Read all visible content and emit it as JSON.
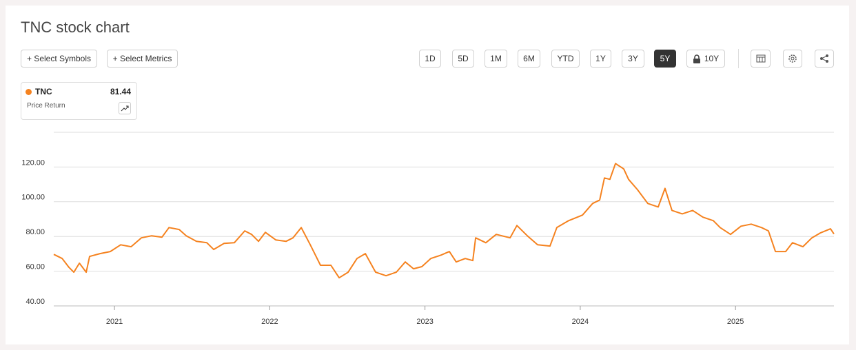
{
  "header": {
    "title": "TNC stock chart"
  },
  "toolbar": {
    "buttons": [
      "+ Select Symbols",
      "+ Select Metrics"
    ],
    "ranges": [
      "1D",
      "5D",
      "1M",
      "6M",
      "YTD",
      "1Y",
      "3Y",
      "5Y",
      "10Y"
    ],
    "active_range": "5Y"
  },
  "legend": {
    "value": "81.44",
    "metric": "Price Return"
  },
  "chart_data": {
    "type": "line",
    "x": [
      2020.609,
      2020.663,
      2020.707,
      2020.738,
      2020.774,
      2020.818,
      2020.84,
      2020.907,
      2020.973,
      2021.04,
      2021.107,
      2021.173,
      2021.24,
      2021.306,
      2021.351,
      2021.417,
      2021.462,
      2021.528,
      2021.595,
      2021.639,
      2021.706,
      2021.772,
      2021.839,
      2021.883,
      2021.928,
      2021.972,
      2022.039,
      2022.105,
      2022.15,
      2022.203,
      2022.261,
      2022.327,
      2022.394,
      2022.447,
      2022.505,
      2022.562,
      2022.616,
      2022.682,
      2022.749,
      2022.815,
      2022.873,
      2022.926,
      2022.98,
      2023.037,
      2023.104,
      2023.157,
      2023.201,
      2023.259,
      2023.308,
      2023.326,
      2023.392,
      2023.459,
      2023.548,
      2023.592,
      2023.659,
      2023.725,
      2023.805,
      2023.849,
      2023.925,
      2024.014,
      2024.08,
      2024.125,
      2024.156,
      2024.191,
      2024.227,
      2024.28,
      2024.311,
      2024.369,
      2024.435,
      2024.502,
      2024.546,
      2024.591,
      2024.657,
      2024.724,
      2024.79,
      2024.857,
      2024.901,
      2024.968,
      2025.035,
      2025.101,
      2025.168,
      2025.212,
      2025.257,
      2025.323,
      2025.367,
      2025.434,
      2025.492,
      2025.545,
      2025.612,
      2025.634
    ],
    "series": [
      {
        "name": "TNC",
        "color": "#f5821f",
        "values": [
          69.7,
          67.3,
          62.2,
          59.4,
          64.6,
          59.4,
          68.5,
          70.1,
          71.3,
          75.2,
          74.1,
          79.2,
          80.4,
          79.6,
          85.1,
          84,
          80.4,
          77.2,
          76.4,
          72.5,
          76,
          76.4,
          83.2,
          81.2,
          77.2,
          82.4,
          78,
          77.2,
          79.2,
          85.1,
          75.2,
          63.4,
          63.4,
          56.2,
          59.4,
          67.3,
          70.1,
          59.4,
          57.4,
          59.4,
          65.3,
          61.4,
          62.6,
          67.3,
          69.3,
          71.3,
          65.3,
          67.3,
          66.1,
          79.2,
          76.4,
          81.2,
          79.2,
          86.3,
          80.4,
          75.2,
          74.5,
          85.1,
          89.1,
          92.3,
          99,
          101,
          113.7,
          112.9,
          122,
          118.9,
          112.9,
          106.9,
          99,
          97,
          107.7,
          95,
          93,
          95,
          91.1,
          89.1,
          85.1,
          81.2,
          85.9,
          87.1,
          85.1,
          83.2,
          71.3,
          71.3,
          76.4,
          74.1,
          79.2,
          82,
          84.4,
          81.44
        ]
      }
    ],
    "xlim": [
      2020.609,
      2025.634
    ],
    "xticks": [
      2021,
      2022,
      2023,
      2024,
      2025
    ],
    "ylim": [
      40,
      140
    ],
    "yticks": [
      {
        "value": 40,
        "label": "40.00"
      },
      {
        "value": 60,
        "label": "60.00"
      },
      {
        "value": 80,
        "label": "80.00"
      },
      {
        "value": 100,
        "label": "100.00"
      },
      {
        "value": 120,
        "label": "120.00"
      }
    ],
    "grid": true
  }
}
